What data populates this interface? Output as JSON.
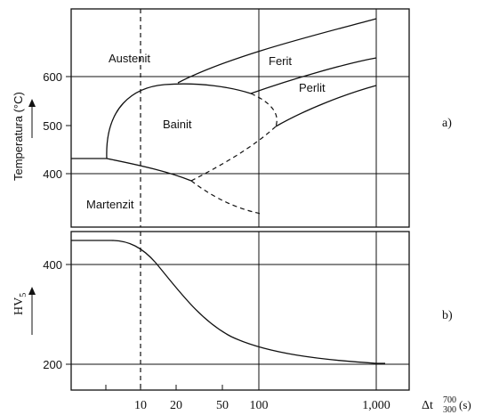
{
  "panel_a": {
    "ylabel": "Temperatura (°C)",
    "yticks": [
      "600",
      "500",
      "400"
    ],
    "regions": {
      "austenit": "Austenit",
      "ferit": "Ferit",
      "perlit": "Perlit",
      "bainit": "Bainit",
      "martenzit": "Martenzit"
    },
    "panel_tag": "a)"
  },
  "panel_b": {
    "ylabel_main": "HV",
    "ylabel_sub": "5",
    "yticks": [
      "400",
      "200"
    ],
    "panel_tag": "b)"
  },
  "x_axis": {
    "ticks": [
      "10",
      "20",
      "50",
      "100",
      "1,000"
    ],
    "label_main": "Δt",
    "label_sup": "700",
    "label_sub": "300",
    "label_unit": "(s)"
  },
  "chart_data": [
    {
      "type": "line",
      "title": "",
      "ylabel": "Temperatura (°C)",
      "xscale": "log",
      "yticks": [
        400,
        500,
        600
      ],
      "xticks": [
        10,
        20,
        50,
        100,
        1000
      ],
      "grid": "partial",
      "regions": [
        "Austenit",
        "Ferit",
        "Perlit",
        "Bainit",
        "Martenzit"
      ]
    },
    {
      "type": "line",
      "title": "",
      "ylabel": "HV5",
      "xlabel": "Δt 700/300 (s)",
      "xscale": "log",
      "xticks": [
        10,
        20,
        50,
        100,
        1000
      ],
      "yticks": [
        200,
        400
      ],
      "grid": "partial",
      "series": [
        {
          "x": [
            2.5,
            5,
            8,
            10,
            12,
            15,
            20,
            30,
            50,
            70,
            100,
            200,
            500,
            1000,
            1200
          ],
          "y": [
            448,
            448,
            440,
            425,
            405,
            380,
            345,
            295,
            255,
            238,
            225,
            212,
            203,
            198,
            198
          ]
        }
      ]
    }
  ]
}
